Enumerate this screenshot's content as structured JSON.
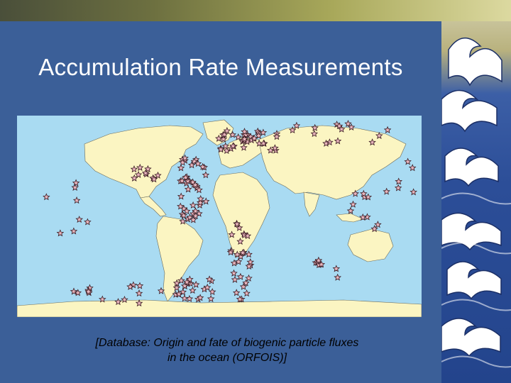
{
  "slide": {
    "title": "Accumulation Rate Measurements",
    "caption_line1": "[Database: Origin and fate of biogenic particle fluxes",
    "caption_line2": "in the ocean (ORFOIS)]"
  },
  "map": {
    "marker_icon": "star-icon",
    "colors": {
      "ocean": "#a9dbf2",
      "land": "#fbf5c2",
      "marker_fill": "#e8b4bc",
      "marker_stroke": "#3a1a22",
      "background": "#3b5f98"
    }
  }
}
